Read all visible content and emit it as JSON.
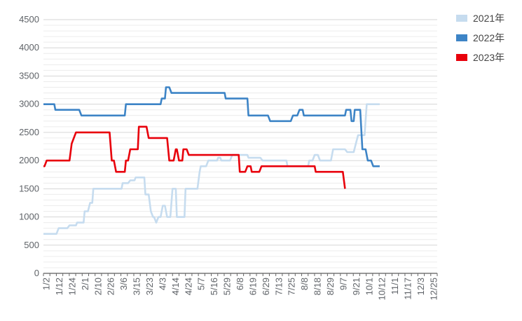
{
  "chart_data": {
    "type": "line",
    "title": "",
    "xlabel": "",
    "ylabel": "",
    "ylim": [
      0,
      4500
    ],
    "yticks": [
      0,
      500,
      1000,
      1500,
      2000,
      2500,
      3000,
      3500,
      4000,
      4500
    ],
    "x_range": [
      "1/2",
      "12/31"
    ],
    "xticks": [
      "1/2",
      "1/12",
      "1/24",
      "2/1",
      "2/10",
      "2/26",
      "3/6",
      "3/15",
      "3/23",
      "4/3",
      "4/14",
      "4/24",
      "5/7",
      "5/16",
      "5/29",
      "6/8",
      "6/19",
      "6/29",
      "7/13",
      "7/25",
      "8/8",
      "8/18",
      "8/29",
      "9/7",
      "9/21",
      "10/1",
      "10/12",
      "11/1",
      "11/17",
      "12/3",
      "12/25"
    ],
    "grid": true,
    "legend_position": "right",
    "series": [
      {
        "name": "2021年",
        "color": "#c6dcef",
        "points": [
          [
            "1/2",
            700
          ],
          [
            "1/12",
            700
          ],
          [
            "1/14",
            700
          ],
          [
            "1/16",
            800
          ],
          [
            "1/22",
            800
          ],
          [
            "1/24",
            800
          ],
          [
            "1/26",
            850
          ],
          [
            "1/30",
            850
          ],
          [
            "2/1",
            850
          ],
          [
            "2/2",
            900
          ],
          [
            "2/8",
            900
          ],
          [
            "2/9",
            1100
          ],
          [
            "2/12",
            1100
          ],
          [
            "2/14",
            1250
          ],
          [
            "2/16",
            1250
          ],
          [
            "2/17",
            1500
          ],
          [
            "2/26",
            1500
          ],
          [
            "3/6",
            1500
          ],
          [
            "3/15",
            1500
          ],
          [
            "3/16",
            1600
          ],
          [
            "3/21",
            1600
          ],
          [
            "3/23",
            1650
          ],
          [
            "3/27",
            1650
          ],
          [
            "3/28",
            1700
          ],
          [
            "4/3",
            1700
          ],
          [
            "4/5",
            1700
          ],
          [
            "4/6",
            1400
          ],
          [
            "4/9",
            1400
          ],
          [
            "4/11",
            1100
          ],
          [
            "4/13",
            1000
          ],
          [
            "4/14",
            1000
          ],
          [
            "4/16",
            900
          ],
          [
            "4/18",
            1000
          ],
          [
            "4/20",
            1000
          ],
          [
            "4/22",
            1200
          ],
          [
            "4/24",
            1200
          ],
          [
            "4/26",
            1000
          ],
          [
            "4/29",
            1000
          ],
          [
            "5/1",
            1500
          ],
          [
            "5/4",
            1500
          ],
          [
            "5/5",
            1000
          ],
          [
            "5/12",
            1000
          ],
          [
            "5/13",
            1500
          ],
          [
            "5/16",
            1500
          ],
          [
            "5/22",
            1500
          ],
          [
            "5/24",
            1500
          ],
          [
            "5/26",
            1800
          ],
          [
            "5/27",
            1900
          ],
          [
            "6/1",
            1900
          ],
          [
            "6/3",
            2000
          ],
          [
            "6/8",
            2000
          ],
          [
            "6/11",
            2000
          ],
          [
            "6/12",
            2050
          ],
          [
            "6/14",
            2050
          ],
          [
            "6/15",
            2000
          ],
          [
            "6/19",
            2000
          ],
          [
            "6/23",
            2000
          ],
          [
            "6/25",
            2100
          ],
          [
            "7/1",
            2100
          ],
          [
            "7/9",
            2100
          ],
          [
            "7/10",
            2050
          ],
          [
            "7/13",
            2050
          ],
          [
            "7/21",
            2050
          ],
          [
            "7/23",
            2000
          ],
          [
            "7/25",
            2000
          ],
          [
            "8/8",
            2000
          ],
          [
            "8/14",
            2000
          ],
          [
            "8/15",
            1900
          ],
          [
            "8/18",
            1900
          ],
          [
            "8/29",
            1900
          ],
          [
            "9/3",
            1900
          ],
          [
            "9/4",
            2000
          ],
          [
            "9/7",
            2000
          ],
          [
            "9/9",
            2100
          ],
          [
            "9/12",
            2100
          ],
          [
            "9/14",
            2000
          ],
          [
            "9/21",
            2000
          ],
          [
            "9/24",
            2000
          ],
          [
            "9/26",
            2200
          ],
          [
            "10/1",
            2200
          ],
          [
            "10/7",
            2200
          ],
          [
            "10/9",
            2150
          ],
          [
            "10/12",
            2150
          ],
          [
            "10/15",
            2150
          ],
          [
            "10/17",
            2300
          ],
          [
            "10/19",
            2450
          ],
          [
            "10/25",
            2450
          ],
          [
            "10/27",
            3000
          ],
          [
            "11/1",
            3000
          ],
          [
            "11/8",
            3000
          ]
        ]
      },
      {
        "name": "2022年",
        "color": "#3d84c6",
        "points": [
          [
            "1/2",
            3000
          ],
          [
            "1/12",
            3000
          ],
          [
            "1/13",
            2900
          ],
          [
            "1/24",
            2900
          ],
          [
            "2/1",
            2900
          ],
          [
            "2/4",
            2900
          ],
          [
            "2/6",
            2800
          ],
          [
            "2/10",
            2800
          ],
          [
            "2/26",
            2800
          ],
          [
            "3/6",
            2800
          ],
          [
            "3/15",
            2800
          ],
          [
            "3/18",
            2800
          ],
          [
            "3/19",
            3000
          ],
          [
            "3/23",
            3000
          ],
          [
            "4/3",
            3000
          ],
          [
            "4/14",
            3000
          ],
          [
            "4/20",
            3000
          ],
          [
            "4/21",
            3100
          ],
          [
            "4/24",
            3100
          ],
          [
            "4/25",
            3300
          ],
          [
            "4/28",
            3300
          ],
          [
            "4/30",
            3200
          ],
          [
            "5/7",
            3200
          ],
          [
            "5/16",
            3200
          ],
          [
            "5/29",
            3200
          ],
          [
            "6/8",
            3200
          ],
          [
            "6/18",
            3200
          ],
          [
            "6/19",
            3100
          ],
          [
            "6/29",
            3100
          ],
          [
            "7/4",
            3100
          ],
          [
            "7/9",
            3100
          ],
          [
            "7/10",
            2800
          ],
          [
            "7/13",
            2800
          ],
          [
            "7/25",
            2800
          ],
          [
            "7/28",
            2800
          ],
          [
            "7/30",
            2700
          ],
          [
            "8/8",
            2700
          ],
          [
            "8/18",
            2700
          ],
          [
            "8/20",
            2800
          ],
          [
            "8/24",
            2800
          ],
          [
            "8/26",
            2900
          ],
          [
            "8/29",
            2900
          ],
          [
            "8/30",
            2800
          ],
          [
            "9/7",
            2800
          ],
          [
            "9/21",
            2800
          ],
          [
            "10/1",
            2800
          ],
          [
            "10/7",
            2800
          ],
          [
            "10/8",
            2900
          ],
          [
            "10/12",
            2900
          ],
          [
            "10/13",
            2700
          ],
          [
            "10/15",
            2700
          ],
          [
            "10/16",
            2900
          ],
          [
            "10/21",
            2900
          ],
          [
            "10/23",
            2200
          ],
          [
            "10/26",
            2200
          ],
          [
            "10/28",
            2000
          ],
          [
            "10/31",
            2000
          ],
          [
            "11/2",
            1900
          ],
          [
            "11/8",
            1900
          ]
        ]
      },
      {
        "name": "2023年",
        "color": "#e8000b",
        "points": [
          [
            "1/2",
            1900
          ],
          [
            "1/3",
            1900
          ],
          [
            "1/5",
            2000
          ],
          [
            "1/24",
            2000
          ],
          [
            "1/26",
            2000
          ],
          [
            "1/28",
            2300
          ],
          [
            "2/1",
            2500
          ],
          [
            "2/10",
            2500
          ],
          [
            "2/26",
            2500
          ],
          [
            "3/4",
            2500
          ],
          [
            "3/6",
            2000
          ],
          [
            "3/8",
            2000
          ],
          [
            "3/10",
            1800
          ],
          [
            "3/15",
            1800
          ],
          [
            "3/18",
            1800
          ],
          [
            "3/19",
            2000
          ],
          [
            "3/21",
            2000
          ],
          [
            "3/23",
            2200
          ],
          [
            "3/30",
            2200
          ],
          [
            "3/31",
            2600
          ],
          [
            "4/3",
            2600
          ],
          [
            "4/7",
            2600
          ],
          [
            "4/9",
            2400
          ],
          [
            "4/14",
            2400
          ],
          [
            "4/24",
            2400
          ],
          [
            "4/26",
            2400
          ],
          [
            "4/28",
            2000
          ],
          [
            "5/2",
            2000
          ],
          [
            "5/4",
            2200
          ],
          [
            "5/5",
            2200
          ],
          [
            "5/7",
            2000
          ],
          [
            "5/10",
            2000
          ],
          [
            "5/11",
            2200
          ],
          [
            "5/14",
            2200
          ],
          [
            "5/16",
            2100
          ],
          [
            "5/29",
            2100
          ],
          [
            "6/8",
            2100
          ],
          [
            "6/19",
            2100
          ],
          [
            "6/29",
            2100
          ],
          [
            "7/1",
            2100
          ],
          [
            "7/2",
            1800
          ],
          [
            "7/7",
            1800
          ],
          [
            "7/9",
            1900
          ],
          [
            "7/12",
            1900
          ],
          [
            "7/13",
            1800
          ],
          [
            "7/20",
            1800
          ],
          [
            "7/22",
            1900
          ],
          [
            "7/25",
            1900
          ],
          [
            "8/8",
            1900
          ],
          [
            "8/18",
            1900
          ],
          [
            "8/29",
            1900
          ],
          [
            "9/7",
            1900
          ],
          [
            "9/9",
            1900
          ],
          [
            "9/10",
            1800
          ],
          [
            "9/21",
            1800
          ],
          [
            "10/1",
            1800
          ],
          [
            "10/5",
            1800
          ],
          [
            "10/7",
            1500
          ]
        ]
      }
    ]
  }
}
